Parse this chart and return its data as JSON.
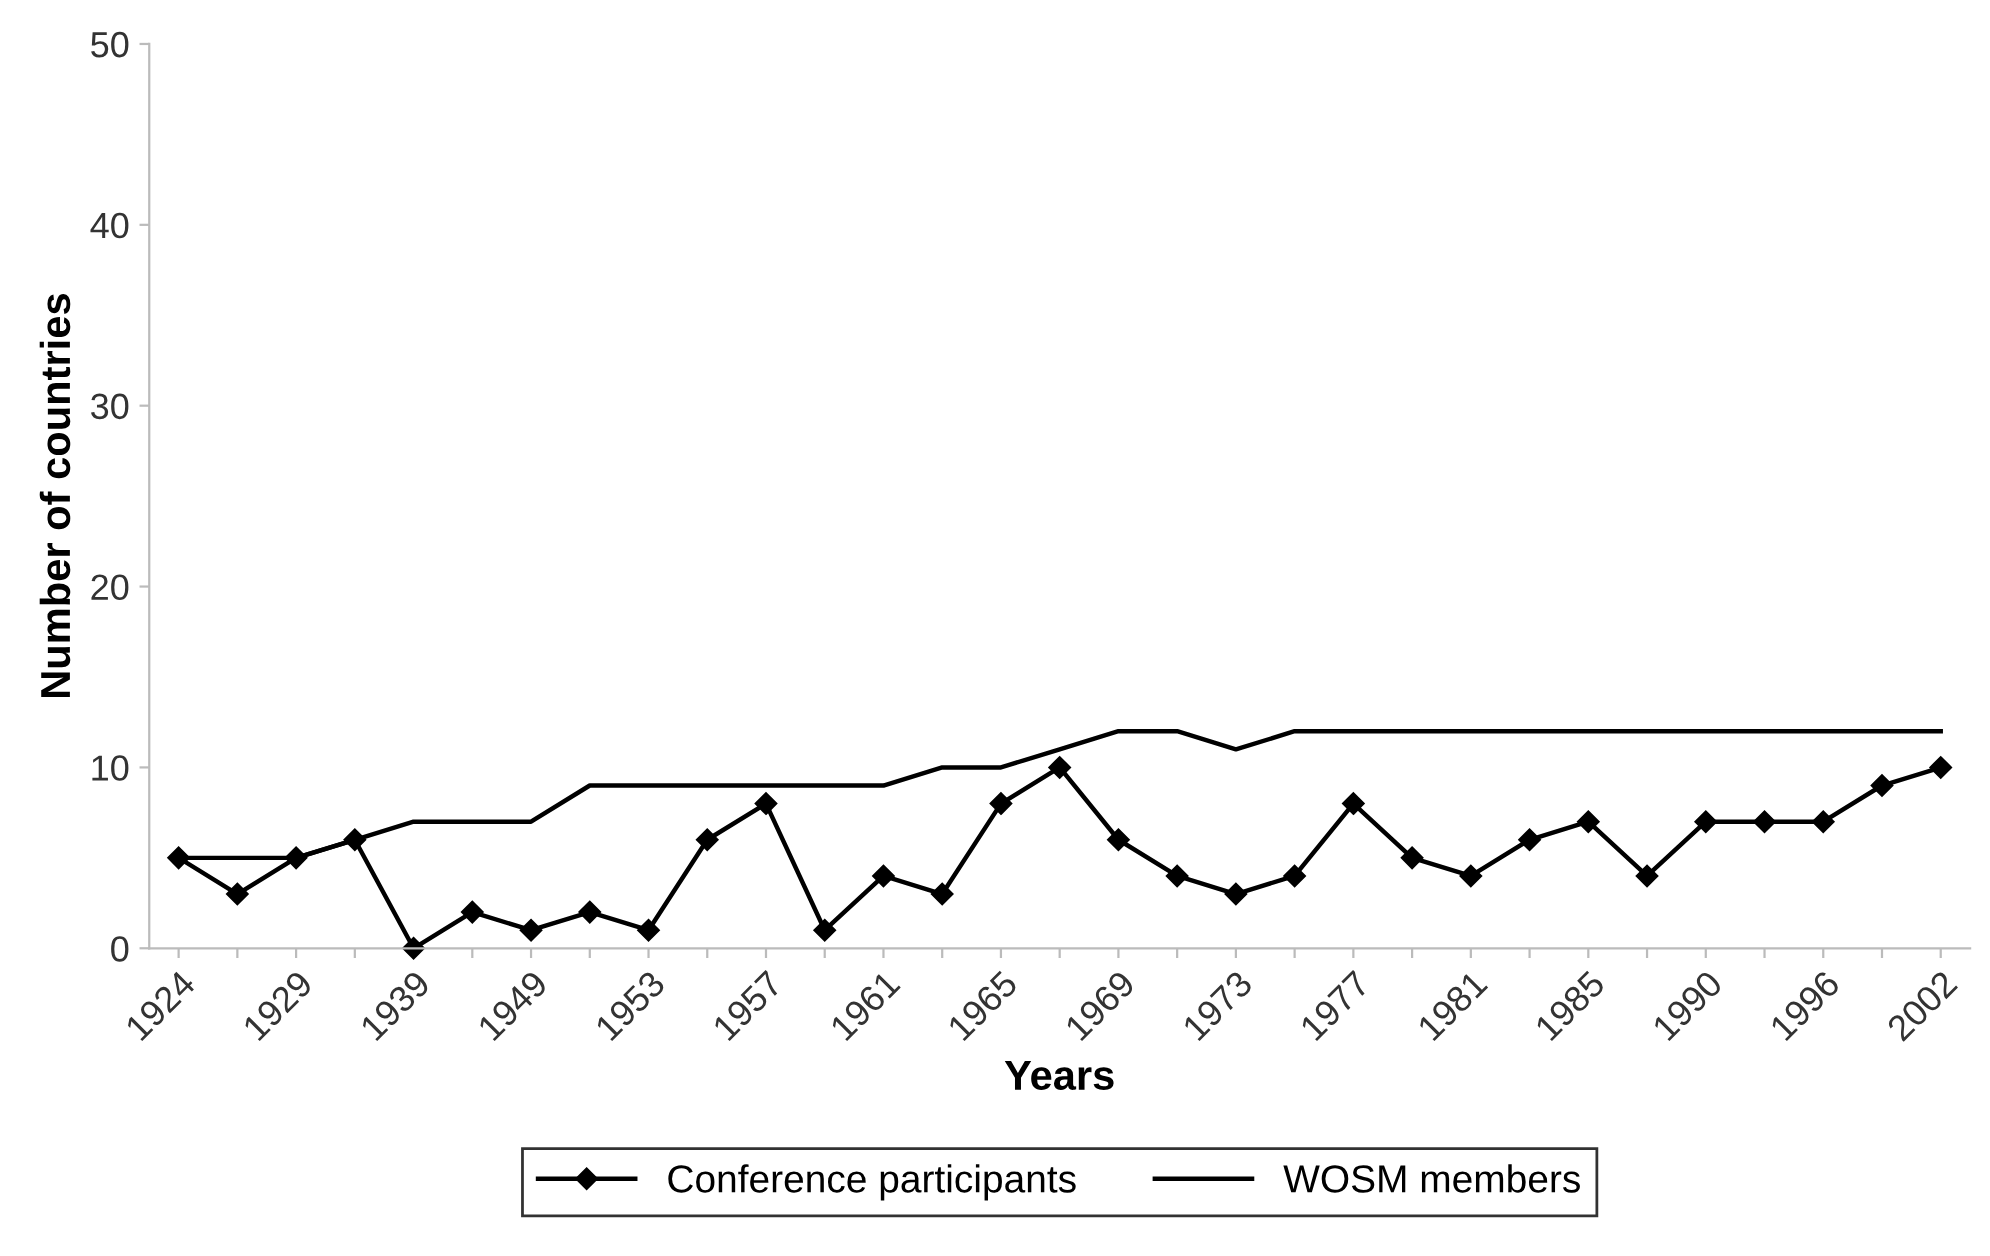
{
  "chart_data": {
    "type": "line",
    "xlabel": "Years",
    "ylabel": "Number of countries",
    "categories": [
      "1924",
      null,
      "1929",
      null,
      "1939",
      null,
      "1949",
      null,
      "1953",
      null,
      "1957",
      null,
      "1961",
      null,
      "1965",
      null,
      "1969",
      null,
      "1973",
      null,
      "1977",
      null,
      "1981",
      null,
      "1985",
      null,
      "1990",
      null,
      "1996",
      null,
      "2002"
    ],
    "series": [
      {
        "name": "Conference participants",
        "color": "#000000",
        "marker": "diamond",
        "values": [
          5,
          3,
          5,
          6,
          0,
          2,
          1,
          2,
          1,
          6,
          8,
          1,
          4,
          3,
          8,
          10,
          6,
          4,
          3,
          4,
          8,
          5,
          4,
          6,
          7,
          4,
          7,
          7,
          7,
          9,
          10
        ]
      },
      {
        "name": "WOSM members",
        "color": "#000000",
        "marker": "none",
        "values": [
          5,
          5,
          5,
          6,
          7,
          7,
          7,
          9,
          9,
          9,
          9,
          9,
          9,
          10,
          10,
          11,
          12,
          12,
          11,
          12,
          12,
          12,
          12,
          12,
          12,
          12,
          12,
          12,
          12,
          12,
          12
        ]
      }
    ],
    "ylim": [
      0,
      50
    ],
    "yticks": [
      0,
      10,
      20,
      30,
      40,
      50
    ],
    "grid": false,
    "legend": "bottom"
  }
}
